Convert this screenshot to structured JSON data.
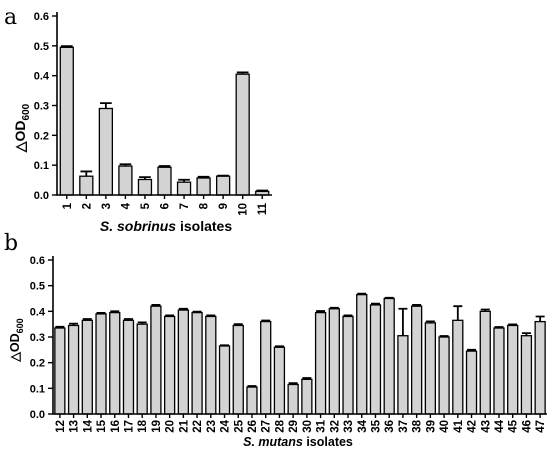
{
  "chart_data": [
    {
      "type": "bar",
      "panel_label": "a",
      "categories": [
        "1",
        "2",
        "3",
        "4",
        "5",
        "6",
        "7",
        "8",
        "9",
        "10",
        "11"
      ],
      "values": [
        0.495,
        0.063,
        0.29,
        0.097,
        0.052,
        0.093,
        0.043,
        0.057,
        0.063,
        0.405,
        0.012
      ],
      "errors": [
        0.004,
        0.016,
        0.018,
        0.006,
        0.008,
        0.004,
        0.008,
        0.004,
        0.002,
        0.006,
        0.003
      ],
      "ylabel": "△OD",
      "ylabel_subscript": "600",
      "xlabel_italic": "S. sobrinus",
      "xlabel_rest": " isolates",
      "ylim": [
        0,
        0.6
      ],
      "yticks": [
        "0.0",
        "0.1",
        "0.2",
        "0.3",
        "0.4",
        "0.5",
        "0.6"
      ],
      "bar_color": "#d3d3d3",
      "grid": false,
      "legend": "none"
    },
    {
      "type": "bar",
      "panel_label": "b",
      "categories": [
        "12",
        "13",
        "14",
        "15",
        "16",
        "17",
        "18",
        "19",
        "20",
        "21",
        "22",
        "23",
        "24",
        "25",
        "26",
        "27",
        "28",
        "29",
        "30",
        "31",
        "32",
        "33",
        "34",
        "35",
        "36",
        "37",
        "38",
        "39",
        "40",
        "41",
        "42",
        "43",
        "44",
        "45",
        "46",
        "47"
      ],
      "values": [
        0.335,
        0.345,
        0.365,
        0.39,
        0.395,
        0.365,
        0.35,
        0.42,
        0.38,
        0.405,
        0.395,
        0.38,
        0.265,
        0.345,
        0.105,
        0.36,
        0.26,
        0.115,
        0.135,
        0.395,
        0.41,
        0.38,
        0.465,
        0.425,
        0.45,
        0.305,
        0.42,
        0.355,
        0.3,
        0.365,
        0.245,
        0.4,
        0.335,
        0.345,
        0.305,
        0.36
      ],
      "errors": [
        0.005,
        0.007,
        0.005,
        0.004,
        0.005,
        0.005,
        0.007,
        0.005,
        0.004,
        0.005,
        0.004,
        0.004,
        0.003,
        0.005,
        0.004,
        0.004,
        0.004,
        0.005,
        0.005,
        0.006,
        0.004,
        0.004,
        0.004,
        0.005,
        0.003,
        0.105,
        0.005,
        0.006,
        0.004,
        0.055,
        0.005,
        0.007,
        0.004,
        0.004,
        0.01,
        0.02
      ],
      "ylabel": "△OD",
      "ylabel_subscript": "600",
      "xlabel_italic": "S. mutans",
      "xlabel_rest": " isolates",
      "ylim": [
        0,
        0.6
      ],
      "yticks": [
        "0.0",
        "0.1",
        "0.2",
        "0.3",
        "0.4",
        "0.5",
        "0.6"
      ],
      "bar_color": "#d3d3d3",
      "grid": false,
      "legend": "none"
    }
  ]
}
